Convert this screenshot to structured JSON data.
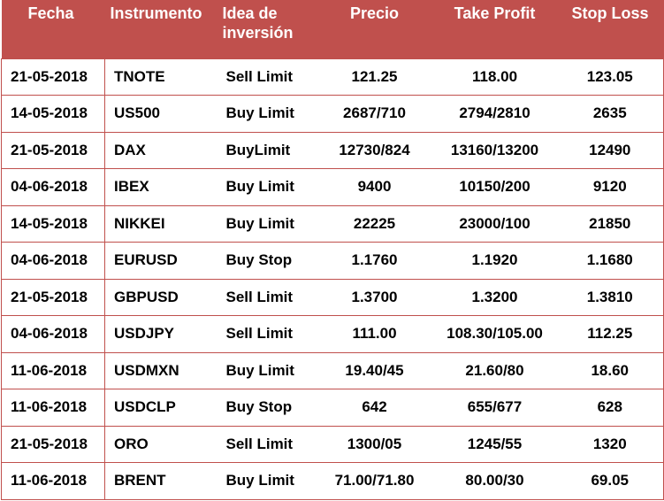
{
  "table": {
    "headers": {
      "fecha": "Fecha",
      "instrumento": "Instrumento",
      "idea": "Idea de inversión",
      "precio": "Precio",
      "take_profit": "Take Profit",
      "stop_loss": "Stop Loss"
    },
    "header_bg": "#c0504d",
    "rows": [
      {
        "fecha": "21-05-2018",
        "instrumento": "TNOTE",
        "idea": "Sell Limit",
        "precio": "121.25",
        "take_profit": "118.00",
        "stop_loss": "123.05"
      },
      {
        "fecha": "14-05-2018",
        "instrumento": "US500",
        "idea": "Buy Limit",
        "precio": "2687/710",
        "take_profit": "2794/2810",
        "stop_loss": "2635"
      },
      {
        "fecha": "21-05-2018",
        "instrumento": "DAX",
        "idea": "BuyLimit",
        "precio": "12730/824",
        "take_profit": "13160/13200",
        "stop_loss": "12490"
      },
      {
        "fecha": "04-06-2018",
        "instrumento": "IBEX",
        "idea": "Buy Limit",
        "precio": "9400",
        "take_profit": "10150/200",
        "stop_loss": "9120"
      },
      {
        "fecha": "14-05-2018",
        "instrumento": "NIKKEI",
        "idea": "Buy Limit",
        "precio": "22225",
        "take_profit": "23000/100",
        "stop_loss": "21850"
      },
      {
        "fecha": "04-06-2018",
        "instrumento": "EURUSD",
        "idea": "Buy Stop",
        "precio": "1.1760",
        "take_profit": "1.1920",
        "stop_loss": "1.1680"
      },
      {
        "fecha": "21-05-2018",
        "instrumento": "GBPUSD",
        "idea": "Sell Limit",
        "precio": "1.3700",
        "take_profit": "1.3200",
        "stop_loss": "1.3810"
      },
      {
        "fecha": "04-06-2018",
        "instrumento": "USDJPY",
        "idea": "Sell Limit",
        "precio": "111.00",
        "take_profit": "108.30/105.00",
        "stop_loss": "112.25"
      },
      {
        "fecha": "11-06-2018",
        "instrumento": "USDMXN",
        "idea": "Buy Limit",
        "precio": "19.40/45",
        "take_profit": "21.60/80",
        "stop_loss": "18.60"
      },
      {
        "fecha": "11-06-2018",
        "instrumento": "USDCLP",
        "idea": "Buy Stop",
        "precio": "642",
        "take_profit": "655/677",
        "stop_loss": "628"
      },
      {
        "fecha": "21-05-2018",
        "instrumento": "ORO",
        "idea": "Sell Limit",
        "precio": "1300/05",
        "take_profit": "1245/55",
        "stop_loss": "1320"
      },
      {
        "fecha": "11-06-2018",
        "instrumento": "BRENT",
        "idea": "Buy Limit",
        "precio": "71.00/71.80",
        "take_profit": "80.00/30",
        "stop_loss": "69.05"
      }
    ]
  }
}
